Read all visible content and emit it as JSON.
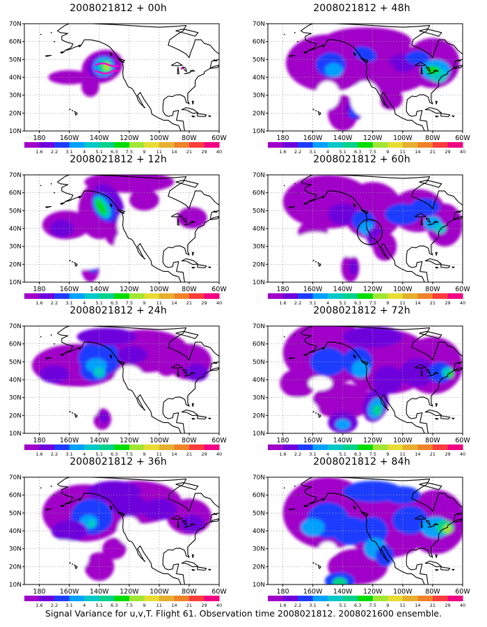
{
  "figure": {
    "caption": "Signal Variance for u,v,T. Flight 61. Observation time 2008021812. 2008021600 ensemble.",
    "colorbar": {
      "labels": [
        "1.6",
        "2.2",
        "3.1",
        "4",
        "5.1",
        "6.3",
        "7.5",
        "9",
        "11",
        "14",
        "21",
        "29",
        "40"
      ],
      "colors": [
        "#a000c8",
        "#6e00dc",
        "#1e3cff",
        "#00a0ff",
        "#00c8c8",
        "#00d28c",
        "#00dc00",
        "#a0e632",
        "#e6dc32",
        "#e6af2d",
        "#f08228",
        "#fa3c3c",
        "#f00082"
      ]
    },
    "axes": {
      "x_ticks": [
        "180",
        "160W",
        "140W",
        "120W",
        "100W",
        "80W",
        "60W"
      ],
      "y_ticks": [
        "70N",
        "60N",
        "50N",
        "40N",
        "30N",
        "20N",
        "10N"
      ]
    },
    "panels": [
      {
        "id": "00h",
        "title": "2008021812 + 00h",
        "col": 0,
        "row": 0
      },
      {
        "id": "48h",
        "title": "2008021812 + 48h",
        "col": 1,
        "row": 0
      },
      {
        "id": "12h",
        "title": "2008021812 + 12h",
        "col": 0,
        "row": 1
      },
      {
        "id": "60h",
        "title": "2008021812 + 60h",
        "col": 1,
        "row": 1
      },
      {
        "id": "24h",
        "title": "2008021812 + 24h",
        "col": 0,
        "row": 2
      },
      {
        "id": "72h",
        "title": "2008021812 + 72h",
        "col": 1,
        "row": 2
      },
      {
        "id": "36h",
        "title": "2008021812 + 36h",
        "col": 0,
        "row": 3
      },
      {
        "id": "84h",
        "title": "2008021812 + 84h",
        "col": 1,
        "row": 3
      }
    ]
  }
}
